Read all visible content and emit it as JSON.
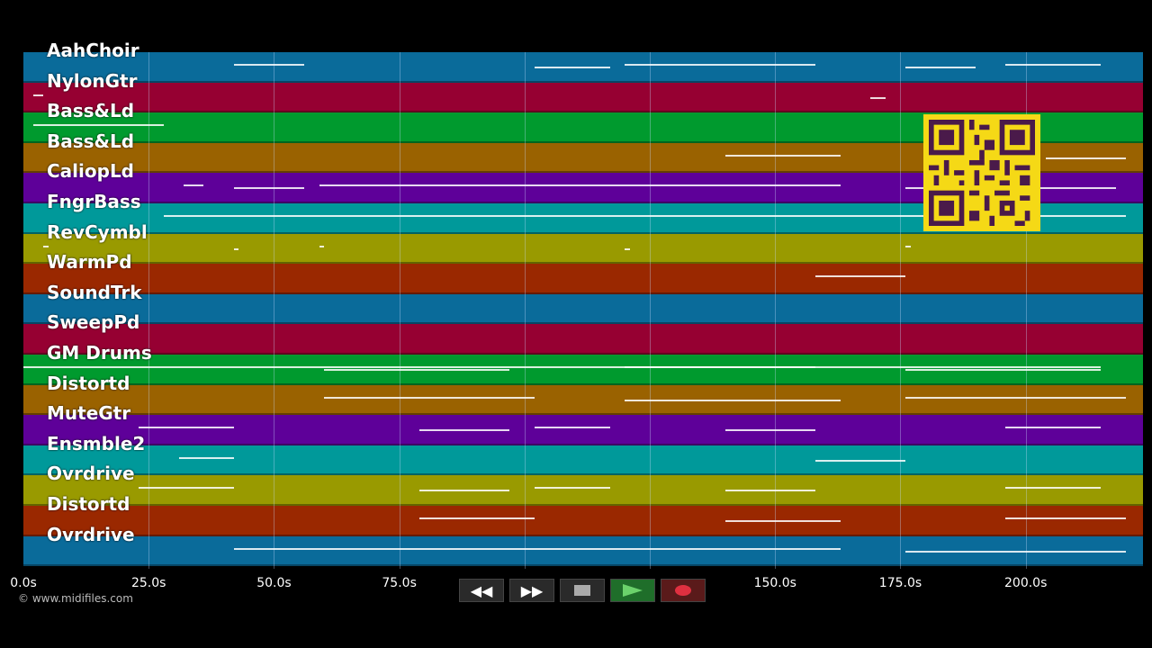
{
  "tracks": [
    {
      "name": "AahChoir",
      "color": "#0a6b9a"
    },
    {
      "name": "NylonGtr",
      "color": "#960032"
    },
    {
      "name": "Bass&Ld",
      "color": "#009a2e"
    },
    {
      "name": "Bass&Ld",
      "color": "#9a6200"
    },
    {
      "name": "CaliopLd",
      "color": "#5e0099"
    },
    {
      "name": "FngrBass",
      "color": "#00999a"
    },
    {
      "name": "RevCymbl",
      "color": "#999a00"
    },
    {
      "name": "WarmPd",
      "color": "#9a2800"
    },
    {
      "name": "SoundTrk",
      "color": "#0a6b9a"
    },
    {
      "name": "SweepPd",
      "color": "#960032"
    },
    {
      "name": "GM Drums",
      "color": "#009a2e"
    },
    {
      "name": "Distortd",
      "color": "#9a6200"
    },
    {
      "name": "MuteGtr",
      "color": "#5e0099"
    },
    {
      "name": "Ensmble2",
      "color": "#00999a"
    },
    {
      "name": "Ovrdrive",
      "color": "#999a00"
    },
    {
      "name": "Distortd",
      "color": "#9a2800"
    },
    {
      "name": "Ovrdrive",
      "color": "#0a6b9a"
    }
  ],
  "timeline": {
    "max_seconds": 223.4,
    "ticks": [
      {
        "t": 0,
        "label": "0.0s"
      },
      {
        "t": 25,
        "label": "25.0s"
      },
      {
        "t": 50,
        "label": "50.0s"
      },
      {
        "t": 75,
        "label": "75.0s"
      },
      {
        "t": 150,
        "label": "150.0s"
      },
      {
        "t": 175,
        "label": "175.0s"
      },
      {
        "t": 200,
        "label": "200.0s"
      }
    ],
    "grid_seconds": [
      25,
      50,
      75,
      100,
      125,
      150,
      175,
      200
    ]
  },
  "notes": [
    {
      "track": 0,
      "segments": [
        [
          42,
          56
        ],
        [
          102,
          117
        ],
        [
          120,
          158
        ],
        [
          176,
          190
        ],
        [
          196,
          215
        ]
      ]
    },
    {
      "track": 1,
      "segments": [
        [
          2,
          4
        ],
        [
          169,
          172
        ]
      ]
    },
    {
      "track": 2,
      "segments": [
        [
          2,
          28
        ]
      ]
    },
    {
      "track": 3,
      "segments": [
        [
          140,
          163
        ],
        [
          204,
          220
        ]
      ]
    },
    {
      "track": 4,
      "segments": [
        [
          32,
          36
        ],
        [
          42,
          56
        ],
        [
          59,
          163
        ],
        [
          176,
          218
        ]
      ]
    },
    {
      "track": 5,
      "segments": [
        [
          28,
          220
        ]
      ]
    },
    {
      "track": 6,
      "segments": [
        [
          4,
          5
        ],
        [
          42,
          43
        ],
        [
          59,
          60
        ],
        [
          120,
          121
        ],
        [
          176,
          177
        ]
      ]
    },
    {
      "track": 7,
      "segments": [
        [
          158,
          176
        ]
      ]
    },
    {
      "track": 10,
      "segments": [
        [
          0,
          215
        ],
        [
          60,
          97
        ],
        [
          120,
          158
        ],
        [
          176,
          215
        ]
      ]
    },
    {
      "track": 11,
      "segments": [
        [
          60,
          102
        ],
        [
          120,
          163
        ],
        [
          176,
          220
        ]
      ]
    },
    {
      "track": 12,
      "segments": [
        [
          23,
          42
        ],
        [
          79,
          97
        ],
        [
          102,
          117
        ],
        [
          140,
          158
        ],
        [
          196,
          215
        ]
      ]
    },
    {
      "track": 13,
      "segments": [
        [
          31,
          42
        ],
        [
          158,
          176
        ]
      ]
    },
    {
      "track": 14,
      "segments": [
        [
          23,
          42
        ],
        [
          79,
          97
        ],
        [
          102,
          117
        ],
        [
          140,
          158
        ],
        [
          196,
          215
        ]
      ]
    },
    {
      "track": 15,
      "segments": [
        [
          79,
          102
        ],
        [
          140,
          163
        ],
        [
          196,
          220
        ]
      ]
    },
    {
      "track": 16,
      "segments": [
        [
          42,
          163
        ],
        [
          176,
          220
        ]
      ]
    }
  ],
  "transport": {
    "rewind_label": "◀◀",
    "forward_label": "▶▶"
  },
  "copyright": "© www.midifiles.com"
}
